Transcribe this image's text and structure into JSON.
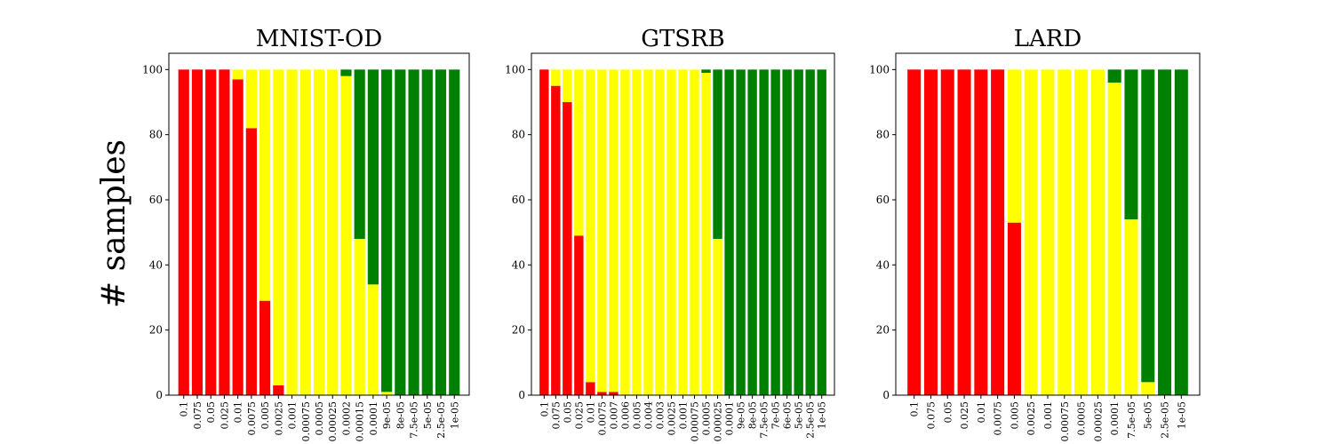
{
  "figure": {
    "ylabel": "# samples",
    "colors": {
      "red": "#ff0000",
      "yellow": "#ffff00",
      "green": "#008000"
    }
  },
  "chart_data": [
    {
      "type": "bar",
      "stacked": true,
      "title": "MNIST-OD",
      "ylim": [
        0,
        105
      ],
      "yticks": [
        0,
        20,
        40,
        60,
        80,
        100
      ],
      "categories": [
        "0.1",
        "0.075",
        "0.05",
        "0.025",
        "0.01",
        "0.0075",
        "0.005",
        "0.0025",
        "0.001",
        "0.00075",
        "0.0005",
        "0.00025",
        "0.0002",
        "0.00015",
        "0.0001",
        "9e-05",
        "8e-05",
        "7.5e-05",
        "5e-05",
        "2.5e-05",
        "1e-05"
      ],
      "series": [
        {
          "color": "#ff0000",
          "values": [
            100,
            100,
            100,
            100,
            97,
            82,
            29,
            3,
            0,
            0,
            0,
            0,
            0,
            0,
            0,
            0,
            0,
            0,
            0,
            0,
            0
          ]
        },
        {
          "color": "#ffff00",
          "values": [
            0,
            0,
            0,
            0,
            3,
            18,
            71,
            97,
            100,
            100,
            100,
            100,
            98,
            48,
            34,
            1,
            0,
            0,
            0,
            0,
            0
          ]
        },
        {
          "color": "#008000",
          "values": [
            0,
            0,
            0,
            0,
            0,
            0,
            0,
            0,
            0,
            0,
            0,
            0,
            2,
            52,
            66,
            99,
            100,
            100,
            100,
            100,
            100
          ]
        }
      ]
    },
    {
      "type": "bar",
      "stacked": true,
      "title": "GTSRB",
      "ylim": [
        0,
        105
      ],
      "yticks": [
        0,
        20,
        40,
        60,
        80,
        100
      ],
      "categories": [
        "0.1",
        "0.075",
        "0.05",
        "0.025",
        "0.01",
        "0.0075",
        "0.007",
        "0.006",
        "0.005",
        "0.004",
        "0.003",
        "0.0025",
        "0.001",
        "0.00075",
        "0.0005",
        "0.00025",
        "0.0001",
        "9e-05",
        "8e-05",
        "7.5e-05",
        "7e-05",
        "6e-05",
        "5e-05",
        "2.5e-05",
        "1e-05"
      ],
      "series": [
        {
          "color": "#ff0000",
          "values": [
            100,
            95,
            90,
            49,
            4,
            1,
            1,
            0,
            0,
            0,
            0,
            0,
            0,
            0,
            0,
            0,
            0,
            0,
            0,
            0,
            0,
            0,
            0,
            0,
            0
          ]
        },
        {
          "color": "#ffff00",
          "values": [
            0,
            5,
            10,
            51,
            96,
            99,
            99,
            100,
            100,
            100,
            100,
            100,
            100,
            100,
            99,
            48,
            0,
            0,
            0,
            0,
            0,
            0,
            0,
            0,
            0
          ]
        },
        {
          "color": "#008000",
          "values": [
            0,
            0,
            0,
            0,
            0,
            0,
            0,
            0,
            0,
            0,
            0,
            0,
            0,
            0,
            1,
            52,
            100,
            100,
            100,
            100,
            100,
            100,
            100,
            100,
            100
          ]
        }
      ]
    },
    {
      "type": "bar",
      "stacked": true,
      "title": "LARD",
      "ylim": [
        0,
        105
      ],
      "yticks": [
        0,
        20,
        40,
        60,
        80,
        100
      ],
      "categories": [
        "0.1",
        "0.075",
        "0.05",
        "0.025",
        "0.01",
        "0.0075",
        "0.005",
        "0.0025",
        "0.001",
        "0.00075",
        "0.0005",
        "0.00025",
        "0.0001",
        "7.5e-05",
        "5e-05",
        "2.5e-05",
        "1e-05"
      ],
      "series": [
        {
          "color": "#ff0000",
          "values": [
            100,
            100,
            100,
            100,
            100,
            100,
            53,
            0,
            0,
            0,
            0,
            0,
            0,
            0,
            0,
            0,
            0
          ]
        },
        {
          "color": "#ffff00",
          "values": [
            0,
            0,
            0,
            0,
            0,
            0,
            47,
            100,
            100,
            100,
            100,
            100,
            96,
            54,
            4,
            0,
            0
          ]
        },
        {
          "color": "#008000",
          "values": [
            0,
            0,
            0,
            0,
            0,
            0,
            0,
            0,
            0,
            0,
            0,
            0,
            4,
            46,
            96,
            100,
            100
          ]
        }
      ]
    }
  ]
}
